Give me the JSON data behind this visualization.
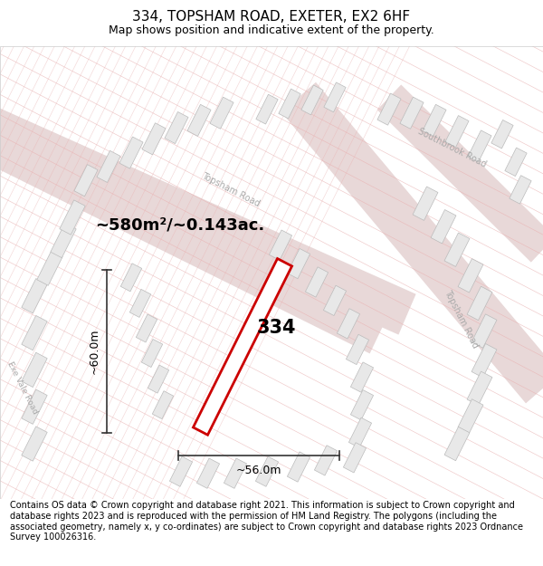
{
  "title": "334, TOPSHAM ROAD, EXETER, EX2 6HF",
  "subtitle": "Map shows position and indicative extent of the property.",
  "footer": "Contains OS data © Crown copyright and database right 2021. This information is subject to Crown copyright and database rights 2023 and is reproduced with the permission of HM Land Registry. The polygons (including the associated geometry, namely x, y co-ordinates) are subject to Crown copyright and database rights 2023 Ordnance Survey 100026316.",
  "map_bg": "#f8f8f8",
  "road_band_color": "#e8d8d8",
  "building_face": "#e8e8e8",
  "building_edge": "#bbbbbb",
  "line_grid_color": "#e8b0b0",
  "property_outline_color": "#cc0000",
  "property_fill": "#ffffff",
  "area_text": "~580m²/~0.143ac.",
  "dim_h": "~60.0m",
  "dim_w": "~56.0m",
  "label_334": "334",
  "title_fontsize": 11,
  "subtitle_fontsize": 9,
  "footer_fontsize": 7,
  "title_weight": "normal",
  "road_label_color": "#aaaaaa",
  "dim_line_color": "#333333"
}
